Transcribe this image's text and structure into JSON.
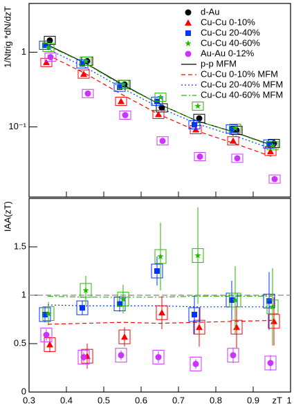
{
  "chart_data": [
    {
      "type": "scatter",
      "ylabel": "1/Ntrig *dN/dzT",
      "log_y": true,
      "xlim": [
        0.3,
        1.0
      ],
      "xticks": [
        0.3,
        0.4,
        0.5,
        0.6,
        0.7,
        0.8,
        0.9,
        1.0
      ],
      "ylim": [
        0.0115,
        4.5
      ],
      "yticks": [
        1,
        {
          "value": 0.1,
          "label": "10⁻¹"
        }
      ],
      "legend": "top-right",
      "x": [
        0.35,
        0.45,
        0.55,
        0.65,
        0.75,
        0.85,
        0.95
      ],
      "series": [
        {
          "name": "d-Au",
          "color": "#000000",
          "marker": "circle",
          "values": [
            1.44,
            0.76,
            0.37,
            0.18,
            0.13,
            0.09,
            0.06
          ]
        },
        {
          "name": "Cu-Cu 0-10%",
          "color": "#ff0000",
          "marker": "triangle",
          "values": [
            0.73,
            0.51,
            0.22,
            0.147,
            0.092,
            0.065,
            0.047
          ]
        },
        {
          "name": "Cu-Cu 20-40%",
          "color": "#0033ff",
          "marker": "square",
          "values": [
            1.24,
            0.7,
            0.34,
            0.22,
            0.107,
            0.094,
            0.059
          ]
        },
        {
          "name": "Cu-Cu 40-60%",
          "color": "#22bb00",
          "marker": "star",
          "values": [
            1.16,
            0.76,
            0.37,
            0.25,
            0.19,
            0.096,
            0.056
          ]
        },
        {
          "name": "Au-Au 0-12%",
          "color": "#cc33ff",
          "marker": "circle",
          "values": [
            0.86,
            0.28,
            0.144,
            0.065,
            0.04,
            0.038,
            0.02
          ]
        }
      ],
      "lines": [
        {
          "name": "p-p MFM",
          "color": "#000000",
          "linestyle": "solid",
          "values": [
            1.25,
            0.72,
            0.37,
            0.2,
            0.12,
            0.085,
            0.057
          ]
        },
        {
          "name": "Cu-Cu 0-10% MFM",
          "color": "#ff0000",
          "linestyle": "dashed",
          "values": [
            0.92,
            0.52,
            0.27,
            0.145,
            0.088,
            0.06,
            0.04
          ]
        },
        {
          "name": "Cu-Cu 20-40% MFM",
          "color": "#0033ff",
          "linestyle": "dotted",
          "values": [
            1.1,
            0.63,
            0.33,
            0.18,
            0.11,
            0.076,
            0.051
          ]
        },
        {
          "name": "Cu-Cu 40-60% MFM",
          "color": "#22bb00",
          "linestyle": "dashdot",
          "values": [
            1.22,
            0.71,
            0.36,
            0.2,
            0.12,
            0.084,
            0.056
          ]
        }
      ]
    },
    {
      "type": "scatter",
      "ylabel": "IAA(zT)",
      "xlabel": "zT",
      "log_y": false,
      "xlim": [
        0.3,
        1.0
      ],
      "xticks": [
        0.3,
        0.4,
        0.5,
        0.6,
        0.7,
        0.8,
        0.9,
        1
      ],
      "ylim": [
        0,
        2
      ],
      "yticks": [
        0,
        0.5,
        1,
        1.5
      ],
      "reference": 1,
      "x": [
        0.35,
        0.45,
        0.55,
        0.65,
        0.75,
        0.85,
        0.95
      ],
      "series": [
        {
          "color": "#ff0000",
          "marker": "triangle",
          "values": [
            0.49,
            0.37,
            0.57,
            0.82,
            0.67,
            0.67,
            0.73
          ],
          "errors": [
            0.08,
            0.13,
            0.1,
            0.17,
            0.2,
            0.22,
            0.25
          ]
        },
        {
          "color": "#cc33ff",
          "marker": "circle",
          "values": [
            0.59,
            0.36,
            0.38,
            0.36,
            0.29,
            0.38,
            0.3
          ],
          "errors": [
            0.06,
            0.05,
            0.05,
            0.06,
            0.05,
            0.08,
            0.08
          ]
        },
        {
          "color": "#0033ff",
          "marker": "square",
          "values": [
            0.8,
            0.87,
            0.91,
            1.25,
            0.8,
            0.95,
            0.94
          ],
          "errors": [
            0.08,
            0.07,
            0.08,
            0.15,
            0.2,
            0.2,
            0.3
          ]
        },
        {
          "color": "#22bb00",
          "marker": "star",
          "values": [
            0.81,
            1.05,
            0.96,
            1.4,
            1.41,
            0.95,
            0.88
          ],
          "errors": [
            0.12,
            0.15,
            0.15,
            0.35,
            0.5,
            0.35,
            0.4
          ]
        }
      ],
      "lines": [
        {
          "color": "#ff0000",
          "linestyle": "dashed",
          "values": [
            0.7,
            0.71,
            0.72,
            0.71,
            0.72,
            0.73,
            0.74
          ]
        },
        {
          "color": "#0033ff",
          "linestyle": "dotted",
          "values": [
            0.9,
            0.89,
            0.89,
            0.89,
            0.88,
            0.88,
            0.88
          ]
        },
        {
          "color": "#22bb00",
          "linestyle": "dashdot",
          "values": [
            0.99,
            0.98,
            0.98,
            0.98,
            0.99,
            0.99,
            0.99
          ]
        }
      ]
    }
  ]
}
